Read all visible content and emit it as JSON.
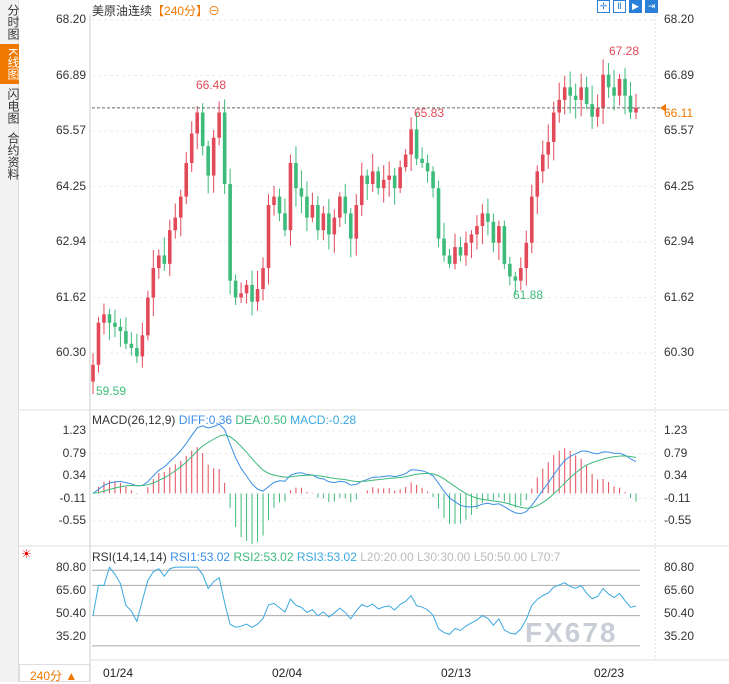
{
  "sidebar": {
    "tabs": [
      {
        "label": "分时图",
        "active": false
      },
      {
        "label": "K线图",
        "active": true
      },
      {
        "label": "闪电图",
        "active": false
      },
      {
        "label": "合约资料",
        "active": false
      }
    ]
  },
  "header": {
    "title": "美原油连续",
    "period": "【240分】",
    "period_icon": "zoom-circle-icon",
    "tools": [
      "crosshair-icon",
      "fit-icon",
      "play-icon",
      "end-icon"
    ]
  },
  "colors": {
    "up": "#e24a5a",
    "down": "#3dbb7a",
    "diff": "#3a8ee6",
    "dea": "#3dbb7a",
    "rsi": "#3aa8e0",
    "accent": "#f07800"
  },
  "price_axis": {
    "ticks": [
      "68.20",
      "66.89",
      "65.57",
      "64.25",
      "62.94",
      "61.62",
      "60.30"
    ],
    "current": "66.11"
  },
  "price_labels": {
    "high1": "66.48",
    "high2": "65.83",
    "high3": "67.28",
    "low1": "59.59",
    "low2": "61.88"
  },
  "macd": {
    "label": "MACD(26,12,9)",
    "diff": "DIFF:0.36",
    "dea": "DEA:0.50",
    "macd": "MACD:-0.28",
    "ticks": [
      "1.23",
      "0.79",
      "0.34",
      "-0.11",
      "-0.55"
    ]
  },
  "rsi": {
    "label": "RSI(14,14,14)",
    "rsi1": "RSI1:53.02",
    "rsi2": "RSI2:53.02",
    "rsi3": "RSI3:53.02",
    "l20": "L20:20.00",
    "l30": "L30:30.00",
    "l50": "L50:50.00",
    "l70": "L70:7",
    "ticks": [
      "80.80",
      "65.60",
      "50.40",
      "35.20"
    ]
  },
  "dates": [
    "01/24",
    "02/04",
    "02/13",
    "02/23"
  ],
  "footer": {
    "period": "240分 ▲",
    "watermark": "FX678"
  },
  "chart_data": {
    "type": "candlestick",
    "ylim": [
      59.5,
      68.2
    ],
    "closes": [
      60.0,
      61.0,
      61.2,
      61.0,
      60.9,
      60.8,
      60.5,
      60.4,
      60.2,
      60.7,
      61.6,
      62.3,
      62.6,
      62.4,
      63.2,
      63.5,
      64.0,
      64.8,
      65.5,
      66.0,
      65.2,
      64.5,
      65.4,
      66.0,
      64.3,
      62.0,
      61.6,
      61.7,
      61.9,
      61.5,
      61.8,
      62.3,
      63.8,
      64.0,
      63.6,
      63.2,
      64.8,
      64.2,
      64.0,
      63.5,
      63.8,
      63.2,
      63.6,
      63.1,
      63.5,
      64.0,
      63.6,
      63.0,
      63.8,
      64.5,
      64.3,
      64.6,
      64.2,
      64.4,
      64.5,
      64.2,
      64.7,
      65.0,
      65.6,
      64.9,
      64.8,
      64.6,
      64.2,
      63.0,
      62.6,
      62.4,
      62.8,
      62.6,
      62.9,
      63.1,
      63.3,
      63.6,
      63.4,
      62.9,
      63.3,
      62.4,
      62.1,
      62.0,
      62.3,
      62.9,
      64.0,
      64.6,
      65.0,
      65.3,
      66.0,
      66.3,
      66.6,
      66.4,
      66.3,
      66.6,
      66.2,
      65.9,
      66.1,
      66.9,
      66.6,
      66.4,
      66.8,
      66.4,
      66.0,
      66.11
    ]
  }
}
